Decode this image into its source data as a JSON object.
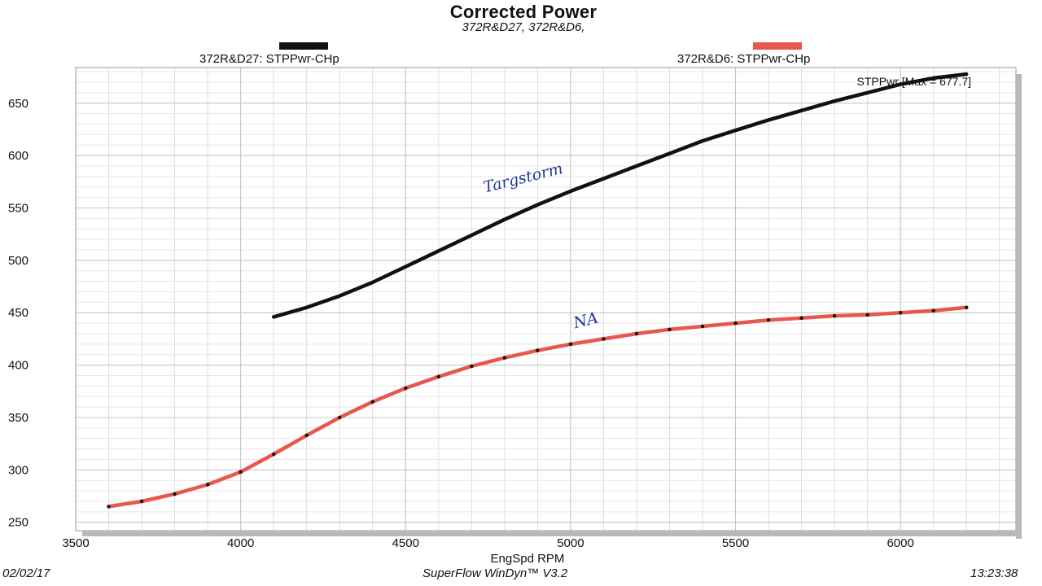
{
  "chart_data": {
    "type": "line",
    "title": "Corrected Power",
    "subtitle": "372R&D27, 372R&D6,",
    "xlabel": "EngSpd RPM",
    "ylabel": "",
    "xlim": [
      3500,
      6350
    ],
    "ylim": [
      242,
      684
    ],
    "x_ticks": [
      3500,
      4000,
      4500,
      5000,
      5500,
      6000
    ],
    "y_ticks": [
      250,
      300,
      350,
      400,
      450,
      500,
      550,
      600,
      650
    ],
    "x_minor_step": 100,
    "y_minor_step": 10,
    "grid": true,
    "legend_placement": "top",
    "max_label": "STPPwr [Max = 677.7]",
    "series": [
      {
        "name": "372R&D27: STPPwr-CHp",
        "color": "#111111",
        "markers": false,
        "x": [
          4100,
          4200,
          4300,
          4400,
          4500,
          4600,
          4700,
          4800,
          4900,
          5000,
          5100,
          5200,
          5300,
          5400,
          5500,
          5600,
          5700,
          5800,
          5900,
          6000,
          6100,
          6200
        ],
        "values": [
          446,
          455,
          466,
          479,
          494,
          509,
          524,
          539,
          553,
          566,
          578,
          590,
          602,
          614,
          624,
          634,
          643,
          652,
          660,
          668,
          674,
          677.7
        ]
      },
      {
        "name": "372R&D6: STPPwr-CHp",
        "color": "#e8574c",
        "markers": true,
        "x": [
          3600,
          3700,
          3800,
          3900,
          4000,
          4100,
          4200,
          4300,
          4400,
          4500,
          4600,
          4700,
          4800,
          4900,
          5000,
          5100,
          5200,
          5300,
          5400,
          5500,
          5600,
          5700,
          5800,
          5900,
          6000,
          6100,
          6200
        ],
        "values": [
          265,
          270,
          277,
          286,
          298,
          315,
          333,
          350,
          365,
          378,
          389,
          399,
          407,
          414,
          420,
          425,
          430,
          434,
          437,
          440,
          443,
          445,
          447,
          448,
          450,
          452,
          455
        ]
      }
    ],
    "annotations": [
      {
        "text": "Targstorm",
        "x": 4860,
        "y": 574
      },
      {
        "text": "NA",
        "x": 5050,
        "y": 438
      }
    ]
  },
  "footer": {
    "date": "02/02/17",
    "software": "SuperFlow WinDyn™ V3.2",
    "time": "13:23:38"
  }
}
